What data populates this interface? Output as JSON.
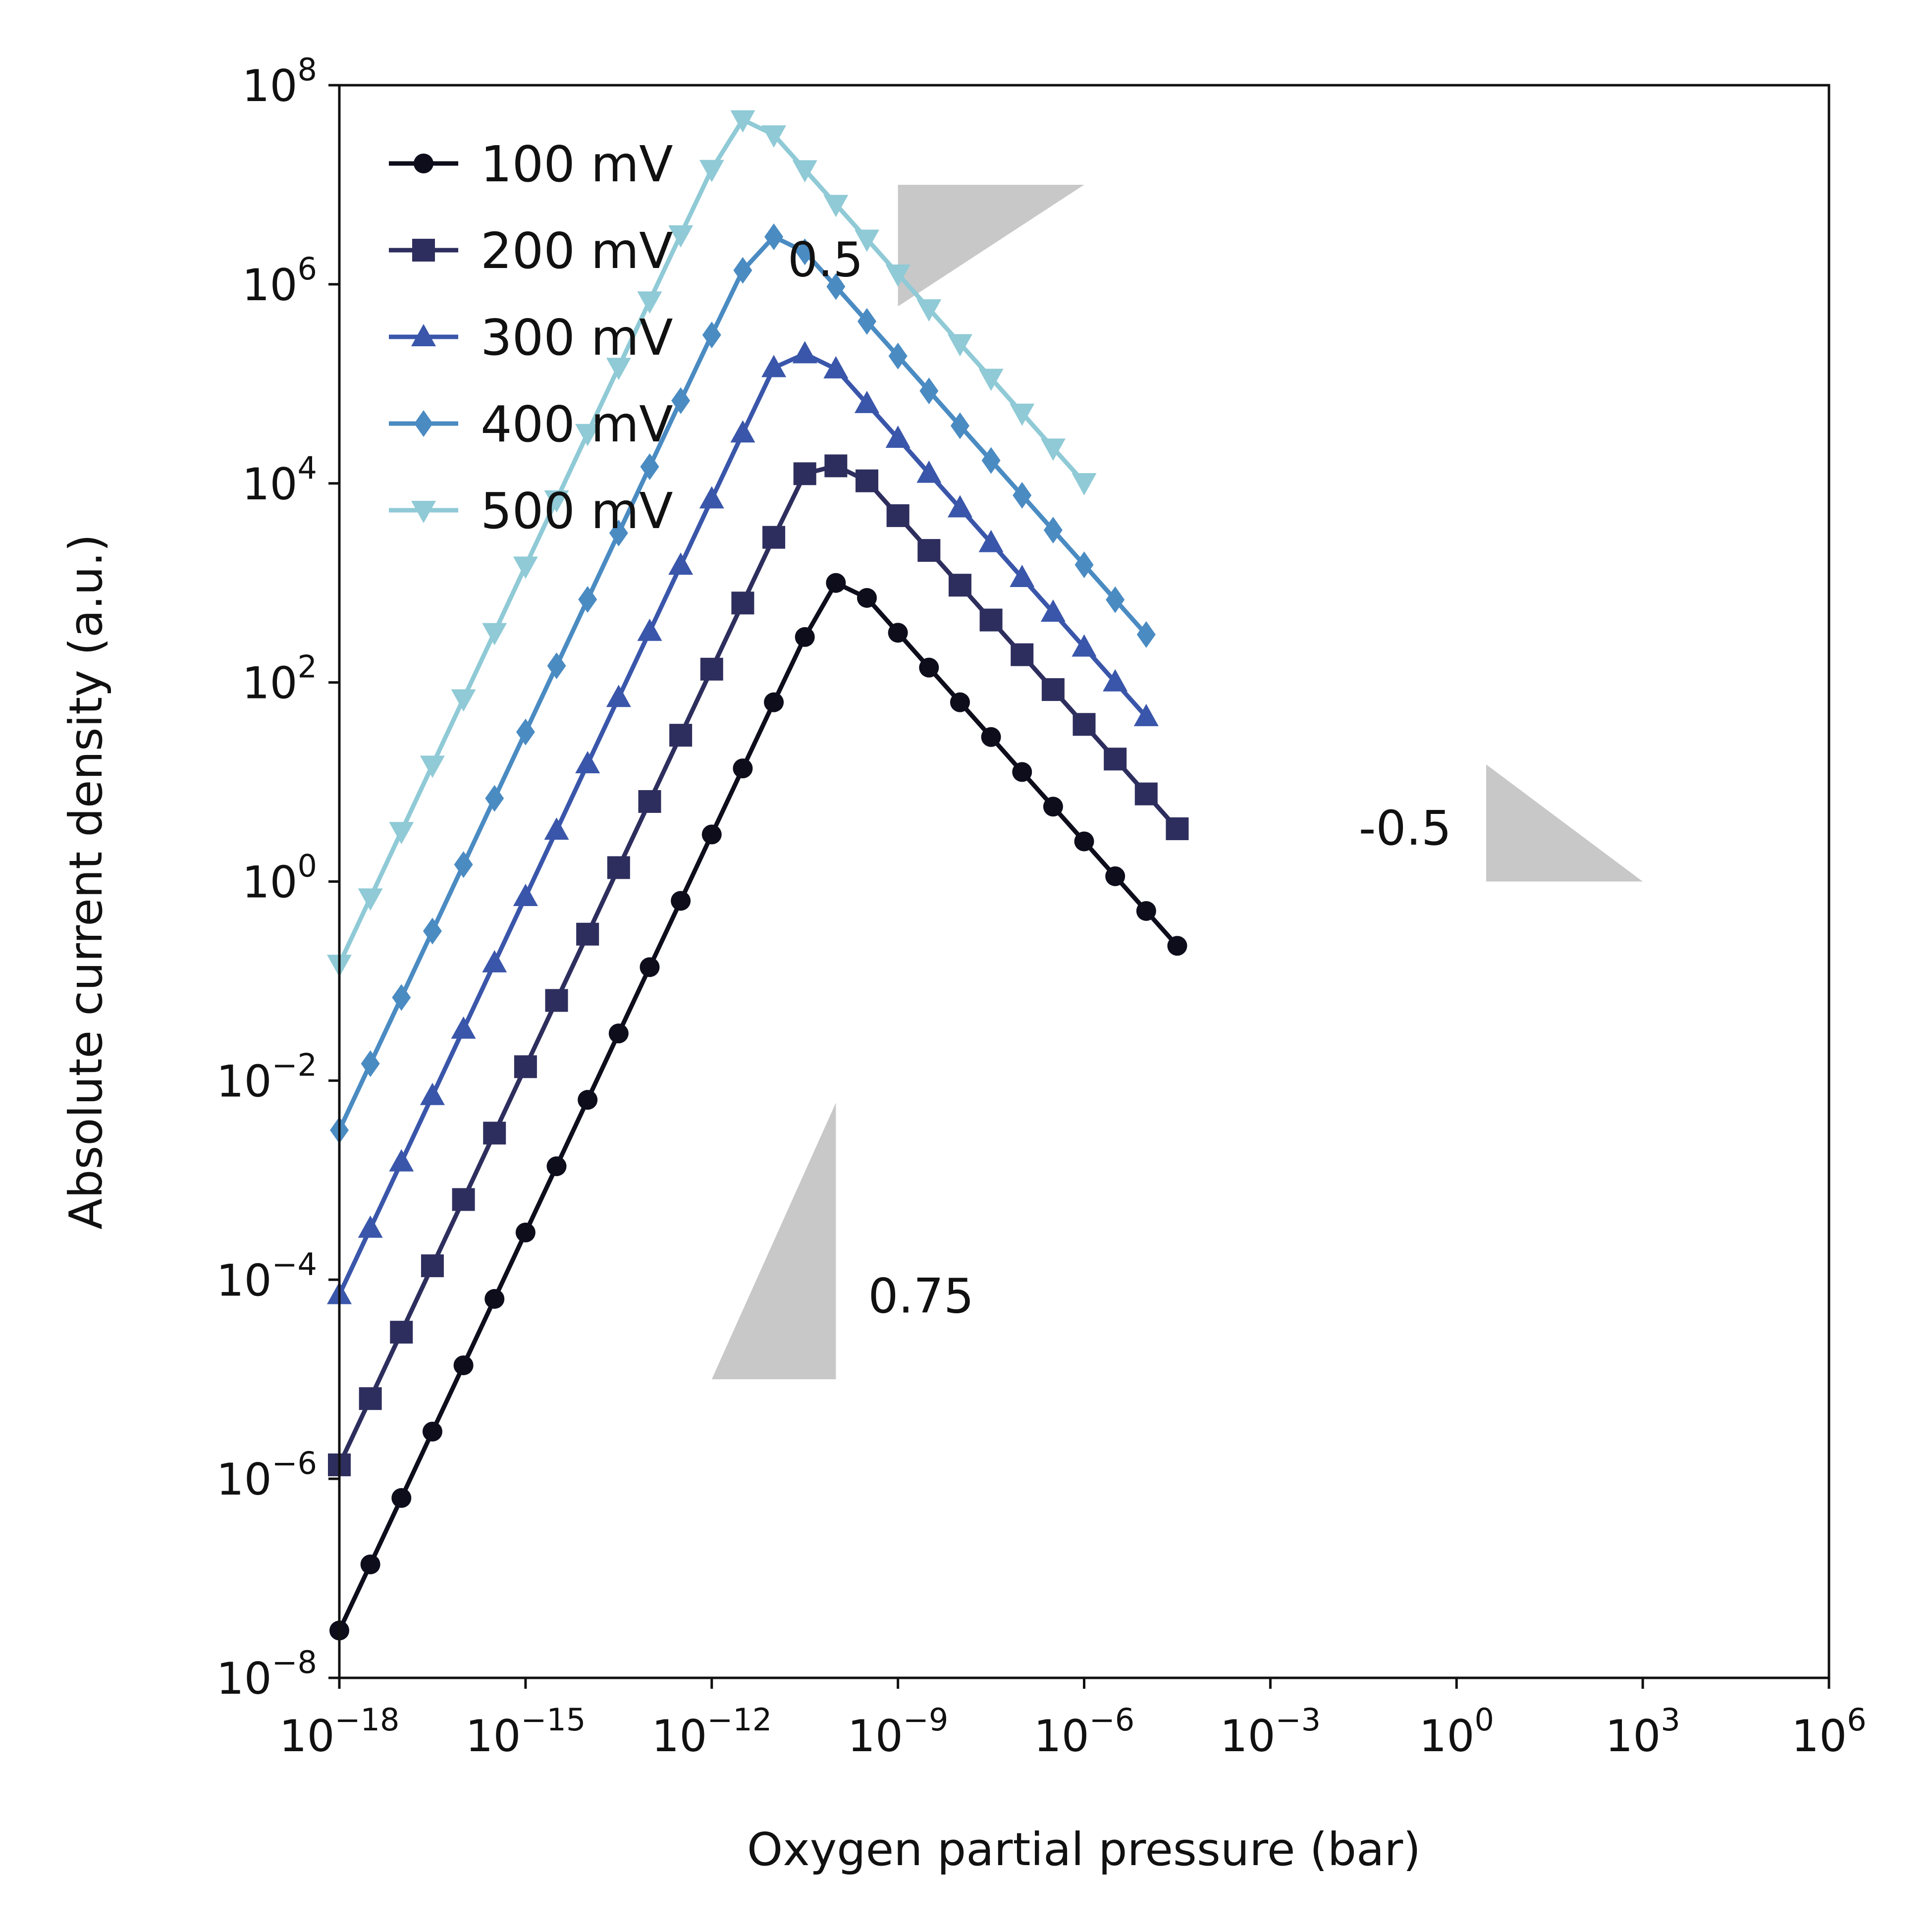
{
  "chart_data": {
    "type": "line",
    "title": "",
    "xlabel": "Oxygen partial pressure (bar)",
    "ylabel": "Absolute current density (a.u.)",
    "xscale": "log",
    "yscale": "log",
    "xlim": [
      1e-18,
      1000000.0
    ],
    "ylim": [
      1e-08,
      100000000.0
    ],
    "x_ticks": [
      {
        "base": "10",
        "exp": "−18"
      },
      {
        "base": "10",
        "exp": "−15"
      },
      {
        "base": "10",
        "exp": "−12"
      },
      {
        "base": "10",
        "exp": "−9"
      },
      {
        "base": "10",
        "exp": "−6"
      },
      {
        "base": "10",
        "exp": "−3"
      },
      {
        "base": "10",
        "exp": "0"
      },
      {
        "base": "10",
        "exp": "3"
      },
      {
        "base": "10",
        "exp": "6"
      }
    ],
    "y_ticks": [
      {
        "base": "10",
        "exp": "−8"
      },
      {
        "base": "10",
        "exp": "−6"
      },
      {
        "base": "10",
        "exp": "−4"
      },
      {
        "base": "10",
        "exp": "−2"
      },
      {
        "base": "10",
        "exp": "0"
      },
      {
        "base": "10",
        "exp": "2"
      },
      {
        "base": "10",
        "exp": "4"
      },
      {
        "base": "10",
        "exp": "6"
      },
      {
        "base": "10",
        "exp": "8"
      }
    ],
    "grid": false,
    "legend_position": "top-left",
    "x_range_points": {
      "start": 1e-18,
      "end": 1000000.0,
      "count": 49
    },
    "series": [
      {
        "name": "100 mV",
        "color": "#0d0d1c",
        "marker": "circle",
        "values": [
          2.99e-08,
          1.38e-07,
          6.41e-07,
          2.98e-06,
          1.38e-05,
          6.41e-05,
          0.000298,
          0.00138,
          0.00641,
          0.0298,
          0.138,
          0.64,
          2.97,
          13.7,
          63.2,
          286,
          1000,
          707,
          316,
          141,
          63.2,
          28.3,
          12.6,
          5.66,
          2.53,
          1.13,
          0.506,
          0.226
        ]
      },
      {
        "name": "200 mV",
        "color": "#2e2e5e",
        "marker": "square",
        "values": [
          1.38e-06,
          6.39e-06,
          2.97e-05,
          0.000138,
          0.000639,
          0.00297,
          0.0138,
          0.0639,
          0.296,
          1.38,
          6.37,
          29.5,
          136,
          628,
          2870,
          12500,
          15000,
          10600,
          4740,
          2120,
          949,
          424,
          190,
          84.8,
          37.9,
          17.0,
          7.59,
          3.39
        ]
      },
      {
        "name": "300 mV",
        "color": "#3a56aa",
        "marker": "triangle-up",
        "values": [
          7.06e-05,
          0.000328,
          0.00152,
          0.00706,
          0.0328,
          0.152,
          0.705,
          3.27,
          15.2,
          70.4,
          325,
          1500,
          6960,
          32000,
          145000,
          200000,
          141000,
          63200,
          28300,
          12600,
          5660,
          2530,
          1130,
          506,
          226,
          101,
          45.2
        ]
      },
      {
        "name": "400 mV",
        "color": "#4a8bc2",
        "marker": "diamond",
        "values": [
          0.00318,
          0.0148,
          0.0685,
          0.318,
          1.48,
          6.85,
          31.8,
          147,
          683,
          3170,
          14700,
          67800,
          310000,
          1380000,
          3000000,
          2120000,
          949000,
          424000,
          190000,
          84900,
          37900,
          17000,
          7590,
          3390,
          1520,
          678,
          303
        ]
      },
      {
        "name": "500 mV",
        "color": "#8fcad6",
        "marker": "triangle-down",
        "values": [
          0.148,
          0.686,
          3.19,
          14.8,
          68.6,
          318,
          1480,
          6850,
          31800,
          147000,
          682000,
          3150000,
          14300000,
          45000000,
          31800000,
          14200000,
          6360000,
          2850000,
          1270000,
          569000,
          254000,
          114000,
          50900,
          22700,
          10200
        ]
      }
    ],
    "annotations": [
      {
        "label": "0.5",
        "slope": 0.5
      },
      {
        "label": "-0.5",
        "slope": -0.5
      },
      {
        "label": "0.75",
        "slope": 0.75
      }
    ]
  }
}
